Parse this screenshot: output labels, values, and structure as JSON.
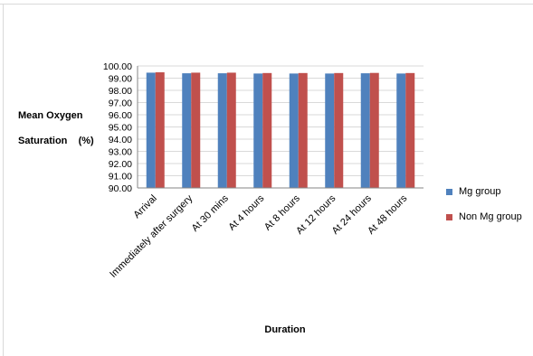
{
  "chart_data": {
    "type": "bar",
    "ylabel_lines": [
      "Mean Oxygen",
      "Saturation    (%)"
    ],
    "xlabel": "Duration",
    "categories": [
      "Arrival",
      "Immediately after surgery",
      "At 30 mins",
      "At 4 hours",
      "At 8 hours",
      "At 12 hours",
      "At 24 hours",
      "At 48 hours"
    ],
    "series": [
      {
        "name": "Mg group",
        "color": "#4f81bd",
        "values": [
          99.45,
          99.4,
          99.4,
          99.38,
          99.38,
          99.38,
          99.4,
          99.38
        ]
      },
      {
        "name": "Non Mg group",
        "color": "#c0504d",
        "values": [
          99.48,
          99.45,
          99.45,
          99.42,
          99.42,
          99.42,
          99.43,
          99.42
        ]
      }
    ],
    "ylim": [
      90.0,
      100.0
    ],
    "yticks": [
      "90.00",
      "91.00",
      "92.00",
      "93.00",
      "94.00",
      "95.00",
      "96.00",
      "97.00",
      "98.00",
      "99.00",
      "100.00"
    ],
    "grid": true,
    "legend_position": "right"
  }
}
